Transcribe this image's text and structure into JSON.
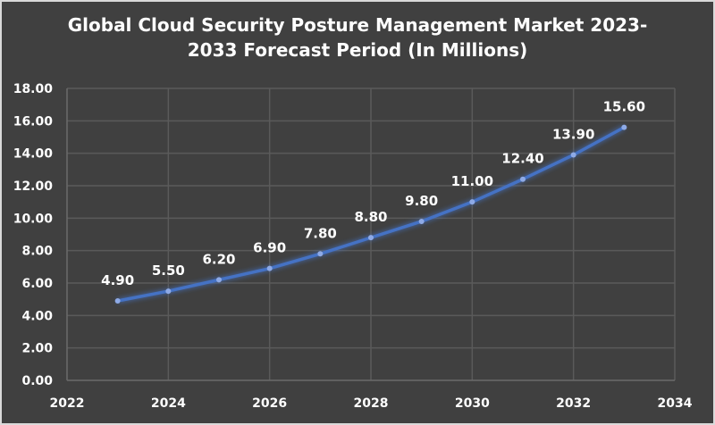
{
  "chart_data": {
    "type": "line",
    "title": "Global Cloud Security Posture Management Market 2023-2033 Forecast Period (In Millions)",
    "xlabel": "",
    "ylabel": "",
    "x": [
      2023,
      2024,
      2025,
      2026,
      2027,
      2028,
      2029,
      2030,
      2031,
      2032,
      2033
    ],
    "values": [
      4.9,
      5.5,
      6.2,
      6.9,
      7.8,
      8.8,
      9.8,
      11.0,
      12.4,
      13.9,
      15.6
    ],
    "data_labels": [
      "4.90",
      "5.50",
      "6.20",
      "6.90",
      "7.80",
      "8.80",
      "9.80",
      "11.00",
      "12.40",
      "13.90",
      "15.60"
    ],
    "xlim": [
      2022,
      2034
    ],
    "ylim": [
      0,
      18
    ],
    "x_ticks": [
      "2022",
      "2024",
      "2026",
      "2028",
      "2030",
      "2032",
      "2034"
    ],
    "y_ticks": [
      "0.00",
      "2.00",
      "4.00",
      "6.00",
      "8.00",
      "10.00",
      "12.00",
      "14.00",
      "16.00",
      "18.00"
    ],
    "grid": true,
    "legend": "none",
    "colors": {
      "background": "#404040",
      "line": "#4472c4",
      "marker": "#8eaae6",
      "grid": "#5a5a5a",
      "text": "#ffffff"
    }
  }
}
